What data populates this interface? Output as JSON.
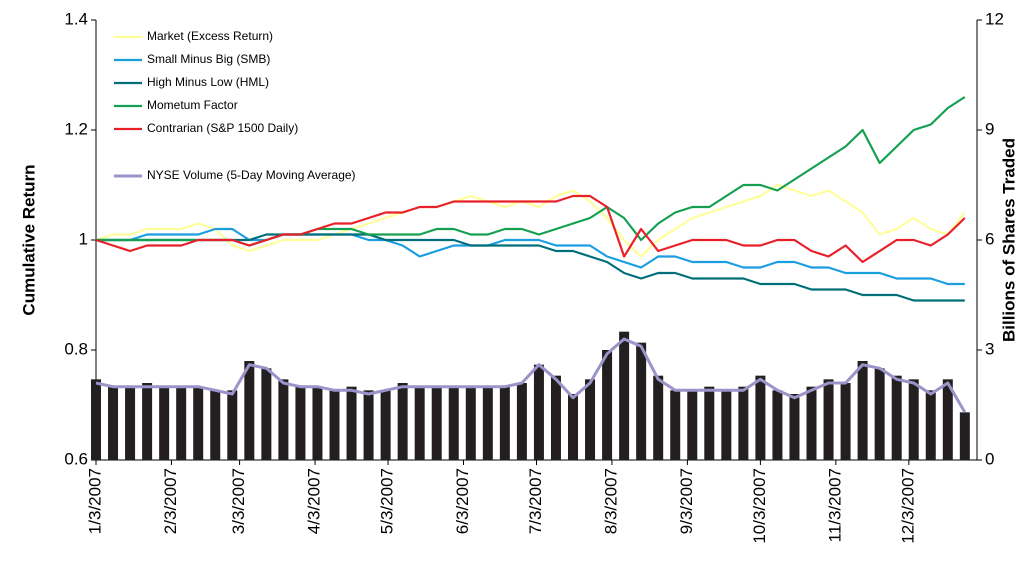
{
  "chart_data": {
    "type": "combo",
    "y_label": "Cumulative Return",
    "y2_label": "Billions of Shares Traded",
    "x": [
      "1/3/2007",
      "1/10/2007",
      "1/17/2007",
      "1/24/2007",
      "1/31/2007",
      "2/7/2007",
      "2/14/2007",
      "2/21/2007",
      "2/28/2007",
      "3/7/2007",
      "3/14/2007",
      "3/21/2007",
      "3/28/2007",
      "4/4/2007",
      "4/11/2007",
      "4/18/2007",
      "4/25/2007",
      "5/2/2007",
      "5/9/2007",
      "5/16/2007",
      "5/23/2007",
      "5/30/2007",
      "6/6/2007",
      "6/13/2007",
      "6/20/2007",
      "6/27/2007",
      "7/4/2007",
      "7/11/2007",
      "7/18/2007",
      "7/25/2007",
      "8/1/2007",
      "8/8/2007",
      "8/15/2007",
      "8/22/2007",
      "8/29/2007",
      "9/5/2007",
      "9/12/2007",
      "9/19/2007",
      "9/26/2007",
      "10/3/2007",
      "10/10/2007",
      "10/17/2007",
      "10/24/2007",
      "10/31/2007",
      "11/7/2007",
      "11/14/2007",
      "11/21/2007",
      "11/28/2007",
      "12/5/2007",
      "12/12/2007",
      "12/19/2007",
      "12/26/2007"
    ],
    "xlim": [
      "1/3/2007",
      "12/31/2007"
    ],
    "xticks": [
      "1/3/2007",
      "2/3/2007",
      "3/3/2007",
      "4/3/2007",
      "5/3/2007",
      "6/3/2007",
      "7/3/2007",
      "8/3/2007",
      "9/3/2007",
      "10/3/2007",
      "11/3/2007",
      "12/3/2007"
    ],
    "ylim": [
      0.6,
      1.4
    ],
    "yticks": [
      0.6,
      0.8,
      1,
      1.2,
      1.4
    ],
    "y2lim": [
      0,
      12
    ],
    "y2ticks": [
      0,
      3,
      6,
      9,
      12
    ],
    "series": [
      {
        "type": "bar",
        "axis": "y2",
        "color": "#231f20",
        "values": [
          2.2,
          2.0,
          2.0,
          2.1,
          2.0,
          2.0,
          2.0,
          1.9,
          1.9,
          2.7,
          2.5,
          2.2,
          2.0,
          2.0,
          1.9,
          2.0,
          1.9,
          1.9,
          2.1,
          2.0,
          2.0,
          2.0,
          2.0,
          2.0,
          2.0,
          2.1,
          2.6,
          2.3,
          1.8,
          2.2,
          3.0,
          3.5,
          3.2,
          2.3,
          1.9,
          1.9,
          2.0,
          1.9,
          2.0,
          2.3,
          1.9,
          1.8,
          2.0,
          2.2,
          2.1,
          2.7,
          2.5,
          2.3,
          2.2,
          1.9,
          2.2,
          1.3
        ]
      },
      {
        "type": "line",
        "name": "Market (Excess Return)",
        "color": "#ffff99",
        "values": [
          1.0,
          1.01,
          1.01,
          1.02,
          1.02,
          1.02,
          1.03,
          1.02,
          0.99,
          0.98,
          0.99,
          1.0,
          1.0,
          1.0,
          1.01,
          1.02,
          1.03,
          1.04,
          1.05,
          1.06,
          1.06,
          1.07,
          1.08,
          1.07,
          1.06,
          1.07,
          1.06,
          1.08,
          1.09,
          1.07,
          1.04,
          1.0,
          0.97,
          1.0,
          1.02,
          1.04,
          1.05,
          1.06,
          1.07,
          1.08,
          1.1,
          1.09,
          1.08,
          1.09,
          1.07,
          1.05,
          1.01,
          1.02,
          1.04,
          1.02,
          1.01,
          1.05
        ]
      },
      {
        "type": "line",
        "name": "Small Minus Big (SMB)",
        "color": "#1a9ee0",
        "values": [
          1.0,
          1.0,
          1.0,
          1.01,
          1.01,
          1.01,
          1.01,
          1.02,
          1.02,
          1.0,
          1.0,
          1.01,
          1.01,
          1.01,
          1.01,
          1.01,
          1.0,
          1.0,
          0.99,
          0.97,
          0.98,
          0.99,
          0.99,
          0.99,
          1.0,
          1.0,
          1.0,
          0.99,
          0.99,
          0.99,
          0.97,
          0.96,
          0.95,
          0.97,
          0.97,
          0.96,
          0.96,
          0.96,
          0.95,
          0.95,
          0.96,
          0.96,
          0.95,
          0.95,
          0.94,
          0.94,
          0.94,
          0.93,
          0.93,
          0.93,
          0.92,
          0.92
        ]
      },
      {
        "type": "line",
        "name": "High Minus Low (HML)",
        "color": "#006f7a",
        "values": [
          1.0,
          1.0,
          1.0,
          1.0,
          1.0,
          1.0,
          1.0,
          1.0,
          1.0,
          1.0,
          1.01,
          1.01,
          1.01,
          1.01,
          1.01,
          1.01,
          1.01,
          1.0,
          1.0,
          1.0,
          1.0,
          1.0,
          0.99,
          0.99,
          0.99,
          0.99,
          0.99,
          0.98,
          0.98,
          0.97,
          0.96,
          0.94,
          0.93,
          0.94,
          0.94,
          0.93,
          0.93,
          0.93,
          0.93,
          0.92,
          0.92,
          0.92,
          0.91,
          0.91,
          0.91,
          0.9,
          0.9,
          0.9,
          0.89,
          0.89,
          0.89,
          0.89
        ]
      },
      {
        "type": "line",
        "name": "Mometum Factor",
        "color": "#14a050",
        "values": [
          1.0,
          1.0,
          1.0,
          1.0,
          1.0,
          1.0,
          1.0,
          1.0,
          1.0,
          0.99,
          1.0,
          1.01,
          1.01,
          1.02,
          1.02,
          1.02,
          1.01,
          1.01,
          1.01,
          1.01,
          1.02,
          1.02,
          1.01,
          1.01,
          1.02,
          1.02,
          1.01,
          1.02,
          1.03,
          1.04,
          1.06,
          1.04,
          1.0,
          1.03,
          1.05,
          1.06,
          1.06,
          1.08,
          1.1,
          1.1,
          1.09,
          1.11,
          1.13,
          1.15,
          1.17,
          1.2,
          1.14,
          1.17,
          1.2,
          1.21,
          1.24,
          1.26
        ]
      },
      {
        "type": "line",
        "name": "Contrarian (S&P 1500 Daily)",
        "color": "#e8202a",
        "values": [
          1.0,
          0.99,
          0.98,
          0.99,
          0.99,
          0.99,
          1.0,
          1.0,
          1.0,
          0.99,
          1.0,
          1.01,
          1.01,
          1.02,
          1.03,
          1.03,
          1.04,
          1.05,
          1.05,
          1.06,
          1.06,
          1.07,
          1.07,
          1.07,
          1.07,
          1.07,
          1.07,
          1.07,
          1.08,
          1.08,
          1.06,
          0.97,
          1.02,
          0.98,
          0.99,
          1.0,
          1.0,
          1.0,
          0.99,
          0.99,
          1.0,
          1.0,
          0.98,
          0.97,
          0.99,
          0.96,
          0.98,
          1.0,
          1.0,
          0.99,
          1.01,
          1.04
        ]
      },
      {
        "type": "line",
        "axis": "y2",
        "name": "NYSE Volume (5-Day Moving Average)",
        "color": "#9b93c9",
        "values": [
          2.1,
          2.0,
          2.0,
          2.0,
          2.0,
          2.0,
          2.0,
          1.9,
          1.8,
          2.6,
          2.5,
          2.1,
          2.0,
          2.0,
          1.9,
          1.9,
          1.8,
          1.9,
          2.0,
          2.0,
          2.0,
          2.0,
          2.0,
          2.0,
          2.0,
          2.1,
          2.6,
          2.2,
          1.7,
          2.1,
          2.9,
          3.3,
          3.1,
          2.2,
          1.9,
          1.9,
          1.9,
          1.9,
          1.9,
          2.2,
          1.9,
          1.7,
          1.9,
          2.1,
          2.1,
          2.6,
          2.5,
          2.2,
          2.1,
          1.8,
          2.1,
          1.3
        ]
      }
    ]
  }
}
